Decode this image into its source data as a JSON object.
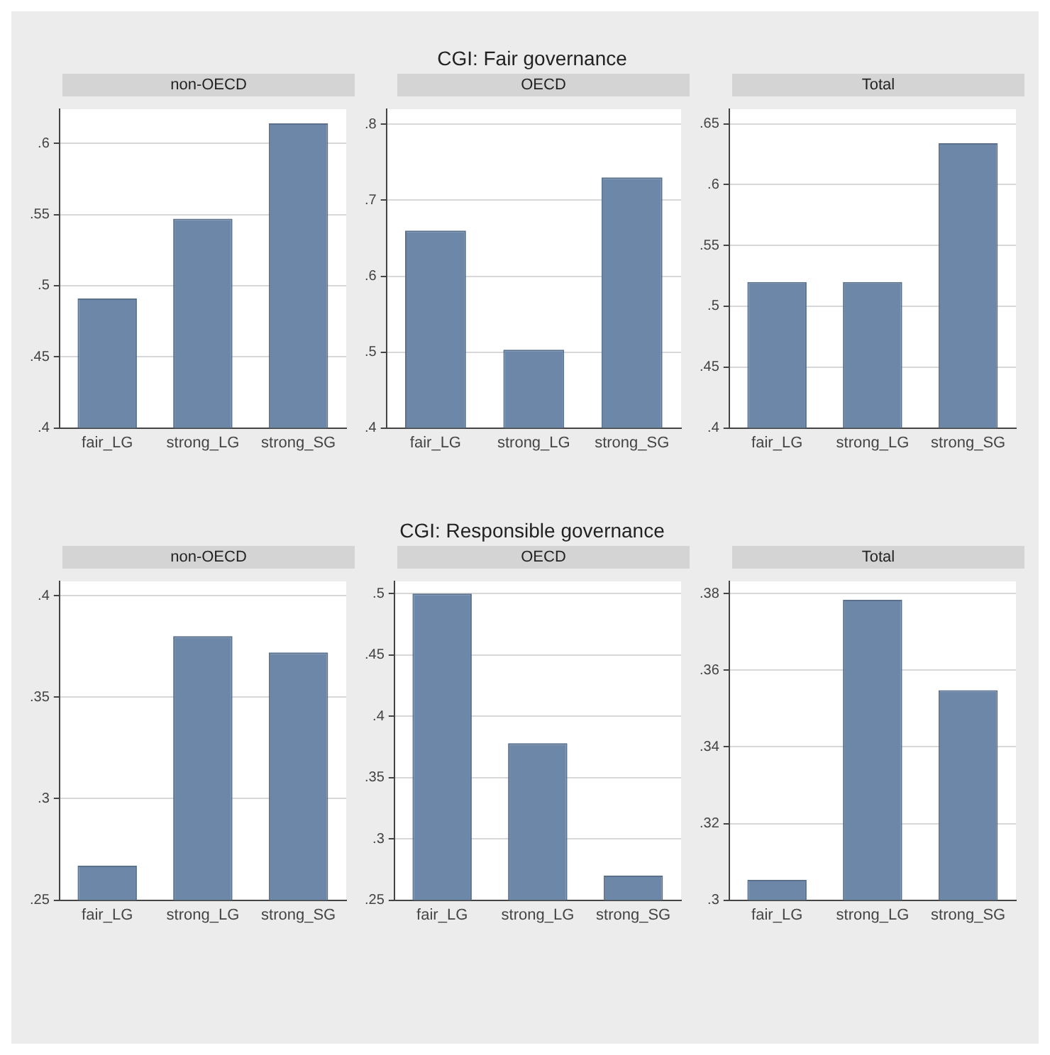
{
  "chart_data": [
    {
      "type": "bar",
      "subtitle": "non-OECD",
      "categories": [
        "fair_LG",
        "strong_LG",
        "strong_SG"
      ],
      "values": [
        0.491,
        0.547,
        0.614
      ],
      "color": "#6d87a8",
      "ylim": [
        0.4,
        0.624
      ],
      "yticks": [
        {
          "value": 0.4,
          "label": ".4"
        },
        {
          "value": 0.45,
          "label": ".45"
        },
        {
          "value": 0.5,
          "label": ".5"
        },
        {
          "value": 0.55,
          "label": ".55"
        },
        {
          "value": 0.6,
          "label": ".6"
        }
      ],
      "grid": "y"
    },
    {
      "type": "bar",
      "title": "CGI: Fair governance",
      "subtitle": "OECD",
      "categories": [
        "fair_LG",
        "strong_LG",
        "strong_SG"
      ],
      "values": [
        0.66,
        0.503,
        0.73
      ],
      "color": "#6d87a8",
      "ylim": [
        0.4,
        0.82
      ],
      "yticks": [
        {
          "value": 0.4,
          "label": ".4"
        },
        {
          "value": 0.5,
          "label": ".5"
        },
        {
          "value": 0.6,
          "label": ".6"
        },
        {
          "value": 0.7,
          "label": ".7"
        },
        {
          "value": 0.8,
          "label": ".8"
        }
      ],
      "grid": "y"
    },
    {
      "type": "bar",
      "subtitle": "Total",
      "categories": [
        "fair_LG",
        "strong_LG",
        "strong_SG"
      ],
      "values": [
        0.52,
        0.52,
        0.634
      ],
      "color": "#6d87a8",
      "ylim": [
        0.4,
        0.662
      ],
      "yticks": [
        {
          "value": 0.4,
          "label": ".4"
        },
        {
          "value": 0.45,
          "label": ".45"
        },
        {
          "value": 0.5,
          "label": ".5"
        },
        {
          "value": 0.55,
          "label": ".55"
        },
        {
          "value": 0.6,
          "label": ".6"
        },
        {
          "value": 0.65,
          "label": ".65"
        }
      ],
      "grid": "y"
    },
    {
      "type": "bar",
      "subtitle": "non-OECD",
      "categories": [
        "fair_LG",
        "strong_LG",
        "strong_SG"
      ],
      "values": [
        0.267,
        0.38,
        0.372
      ],
      "color": "#6d87a8",
      "ylim": [
        0.25,
        0.407
      ],
      "yticks": [
        {
          "value": 0.25,
          "label": ".25"
        },
        {
          "value": 0.3,
          "label": ".3"
        },
        {
          "value": 0.35,
          "label": ".35"
        },
        {
          "value": 0.4,
          "label": ".4"
        }
      ],
      "grid": "y"
    },
    {
      "type": "bar",
      "title": "CGI: Responsible governance",
      "subtitle": "OECD",
      "categories": [
        "fair_LG",
        "strong_LG",
        "strong_SG"
      ],
      "values": [
        0.5,
        0.378,
        0.27
      ],
      "color": "#6d87a8",
      "ylim": [
        0.25,
        0.51
      ],
      "yticks": [
        {
          "value": 0.25,
          "label": ".25"
        },
        {
          "value": 0.3,
          "label": ".3"
        },
        {
          "value": 0.35,
          "label": ".35"
        },
        {
          "value": 0.4,
          "label": ".4"
        },
        {
          "value": 0.45,
          "label": ".45"
        },
        {
          "value": 0.5,
          "label": ".5"
        }
      ],
      "grid": "y"
    },
    {
      "type": "bar",
      "subtitle": "Total",
      "categories": [
        "fair_LG",
        "strong_LG",
        "strong_SG"
      ],
      "values": [
        0.3053,
        0.3784,
        0.3548
      ],
      "color": "#6d87a8",
      "ylim": [
        0.3,
        0.3832
      ],
      "yticks": [
        {
          "value": 0.3,
          "label": ".3"
        },
        {
          "value": 0.32,
          "label": ".32"
        },
        {
          "value": 0.34,
          "label": ".34"
        },
        {
          "value": 0.36,
          "label": ".36"
        },
        {
          "value": 0.38,
          "label": ".38"
        }
      ],
      "grid": "y"
    }
  ]
}
